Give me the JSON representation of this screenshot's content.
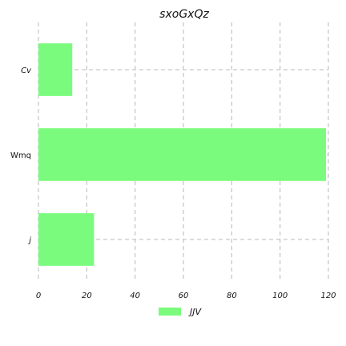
{
  "chart_data": {
    "type": "bar",
    "orientation": "horizontal",
    "title": "sxoGxQz",
    "xlabel": "",
    "ylabel": "",
    "categories": [
      "Cv",
      "Wmq",
      "j"
    ],
    "series": [
      {
        "name": "JJV",
        "values": [
          14,
          119,
          23
        ],
        "color": "#7bfb7d"
      }
    ],
    "xlim": [
      0,
      120
    ],
    "xticks": [
      0,
      20,
      40,
      60,
      80,
      100,
      120
    ],
    "grid": true,
    "grid_style": "dashed",
    "grid_color": "#c8c8c8",
    "legend_position": "bottom-center"
  }
}
